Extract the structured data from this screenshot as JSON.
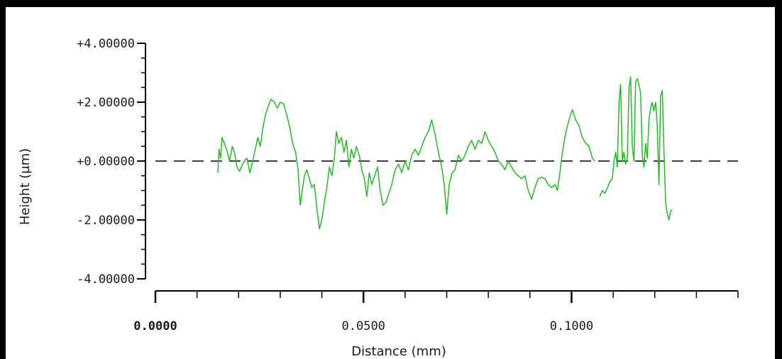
{
  "chart_data": {
    "type": "line",
    "title": "",
    "xlabel": "Distance (mm)",
    "ylabel": "Height (µm)",
    "xlim": [
      0.0,
      0.14
    ],
    "ylim": [
      -4.0,
      4.0
    ],
    "x_ticks": [
      "0.0000",
      "0.0500",
      "0.1000"
    ],
    "x_tick_values": [
      0.0,
      0.05,
      0.1
    ],
    "y_ticks": [
      "+4.00000",
      "+2.00000",
      "+0.00000",
      "-2.00000",
      "-4.00000"
    ],
    "y_tick_values": [
      4,
      2,
      0,
      -2,
      -4
    ],
    "reference_line": {
      "y": 0,
      "style": "dashed",
      "color": "#000000"
    },
    "grid": false,
    "series": [
      {
        "color": "#22bb22",
        "segments": [
          [
            [
              0.015,
              -0.4
            ],
            [
              0.0153,
              0.4
            ],
            [
              0.0157,
              0.1
            ],
            [
              0.016,
              0.8
            ],
            [
              0.0166,
              0.6
            ],
            [
              0.0172,
              0.35
            ],
            [
              0.0178,
              0.0
            ],
            [
              0.0185,
              0.5
            ],
            [
              0.019,
              0.3
            ],
            [
              0.0196,
              -0.2
            ],
            [
              0.0202,
              -0.35
            ],
            [
              0.0208,
              -0.15
            ],
            [
              0.0214,
              0.0
            ],
            [
              0.022,
              0.1
            ],
            [
              0.0227,
              -0.4
            ],
            [
              0.0234,
              0.0
            ],
            [
              0.024,
              0.4
            ],
            [
              0.0246,
              0.8
            ],
            [
              0.0252,
              0.5
            ],
            [
              0.0258,
              1.1
            ],
            [
              0.0265,
              1.6
            ],
            [
              0.0272,
              1.9
            ],
            [
              0.0278,
              2.1
            ],
            [
              0.0286,
              2.0
            ],
            [
              0.0293,
              1.8
            ],
            [
              0.03,
              2.0
            ],
            [
              0.0308,
              1.95
            ],
            [
              0.0315,
              1.6
            ],
            [
              0.0322,
              1.2
            ],
            [
              0.033,
              0.6
            ],
            [
              0.0337,
              0.3
            ],
            [
              0.0343,
              -0.3
            ],
            [
              0.0348,
              -1.5
            ],
            [
              0.0353,
              -1.0
            ],
            [
              0.0358,
              -0.5
            ],
            [
              0.0364,
              -0.3
            ],
            [
              0.037,
              -0.6
            ],
            [
              0.0376,
              -0.9
            ],
            [
              0.0382,
              -0.8
            ],
            [
              0.0388,
              -1.6
            ],
            [
              0.0394,
              -2.3
            ],
            [
              0.04,
              -2.0
            ],
            [
              0.0406,
              -1.4
            ],
            [
              0.0412,
              -0.9
            ],
            [
              0.0418,
              -0.2
            ],
            [
              0.0424,
              -0.5
            ],
            [
              0.043,
              0.1
            ],
            [
              0.0435,
              1.0
            ],
            [
              0.0441,
              0.6
            ],
            [
              0.0447,
              0.8
            ],
            [
              0.0453,
              0.3
            ],
            [
              0.0459,
              0.7
            ],
            [
              0.0465,
              -0.2
            ],
            [
              0.0471,
              0.4
            ],
            [
              0.0477,
              0.1
            ],
            [
              0.0483,
              0.5
            ],
            [
              0.049,
              0.2
            ],
            [
              0.0496,
              -0.3
            ],
            [
              0.0502,
              -0.6
            ],
            [
              0.0508,
              -1.2
            ],
            [
              0.0514,
              -0.4
            ],
            [
              0.052,
              -0.8
            ],
            [
              0.0527,
              -0.5
            ],
            [
              0.0534,
              -0.2
            ],
            [
              0.054,
              -1.0
            ],
            [
              0.0547,
              -1.5
            ],
            [
              0.0554,
              -1.4
            ],
            [
              0.0561,
              -1.1
            ],
            [
              0.0568,
              -0.8
            ],
            [
              0.0576,
              -0.3
            ],
            [
              0.0584,
              -0.1
            ],
            [
              0.0592,
              -0.4
            ],
            [
              0.06,
              0.0
            ],
            [
              0.0608,
              -0.3
            ],
            [
              0.0616,
              0.2
            ],
            [
              0.0624,
              0.4
            ],
            [
              0.0632,
              0.2
            ],
            [
              0.064,
              0.5
            ],
            [
              0.0648,
              0.8
            ],
            [
              0.0656,
              1.0
            ],
            [
              0.0664,
              1.4
            ],
            [
              0.0672,
              0.9
            ],
            [
              0.068,
              0.3
            ],
            [
              0.0688,
              -0.2
            ],
            [
              0.0694,
              -0.8
            ],
            [
              0.07,
              -1.8
            ],
            [
              0.0706,
              -0.8
            ],
            [
              0.0713,
              -0.4
            ],
            [
              0.072,
              -0.3
            ],
            [
              0.0728,
              0.2
            ],
            [
              0.0736,
              0.0
            ],
            [
              0.0744,
              0.2
            ],
            [
              0.0752,
              0.5
            ],
            [
              0.076,
              0.7
            ],
            [
              0.0768,
              0.4
            ],
            [
              0.0776,
              0.7
            ],
            [
              0.0784,
              0.6
            ],
            [
              0.0792,
              1.0
            ],
            [
              0.08,
              0.7
            ],
            [
              0.0808,
              0.5
            ],
            [
              0.0816,
              0.3
            ],
            [
              0.0824,
              0.0
            ],
            [
              0.0832,
              -0.1
            ],
            [
              0.084,
              -0.3
            ],
            [
              0.0848,
              0.0
            ],
            [
              0.0856,
              -0.2
            ],
            [
              0.0864,
              -0.4
            ],
            [
              0.0872,
              -0.5
            ],
            [
              0.088,
              -0.6
            ],
            [
              0.0888,
              -0.5
            ],
            [
              0.0896,
              -1.0
            ],
            [
              0.0904,
              -1.3
            ],
            [
              0.0912,
              -0.9
            ],
            [
              0.092,
              -0.6
            ],
            [
              0.0928,
              -0.55
            ],
            [
              0.0936,
              -0.6
            ],
            [
              0.0944,
              -0.8
            ],
            [
              0.0952,
              -0.9
            ],
            [
              0.096,
              -0.8
            ],
            [
              0.0966,
              -1.0
            ],
            [
              0.0972,
              -0.4
            ],
            [
              0.0978,
              0.3
            ],
            [
              0.0984,
              0.8
            ],
            [
              0.099,
              1.2
            ],
            [
              0.0996,
              1.5
            ],
            [
              0.1002,
              1.75
            ],
            [
              0.101,
              1.4
            ],
            [
              0.1018,
              1.2
            ],
            [
              0.1026,
              0.8
            ],
            [
              0.1034,
              0.6
            ],
            [
              0.1042,
              0.5
            ],
            [
              0.105,
              0.1
            ],
            [
              0.1056,
              0.0
            ]
          ],
          [
            [
              0.1068,
              -1.2
            ],
            [
              0.1074,
              -1.0
            ],
            [
              0.108,
              -1.1
            ],
            [
              0.1086,
              -0.9
            ],
            [
              0.1092,
              -0.7
            ],
            [
              0.1098,
              -0.6
            ],
            [
              0.1102,
              0.0
            ],
            [
              0.1106,
              0.3
            ],
            [
              0.111,
              -0.2
            ],
            [
              0.1114,
              2.0
            ],
            [
              0.1118,
              2.6
            ],
            [
              0.1122,
              0.0
            ],
            [
              0.1126,
              0.3
            ],
            [
              0.113,
              -0.1
            ],
            [
              0.1134,
              0.1
            ],
            [
              0.1138,
              2.5
            ],
            [
              0.1142,
              2.85
            ],
            [
              0.1146,
              0.5
            ],
            [
              0.115,
              0.0
            ],
            [
              0.1154,
              2.7
            ],
            [
              0.1158,
              2.8
            ],
            [
              0.1162,
              2.6
            ],
            [
              0.1166,
              2.3
            ],
            [
              0.117,
              0.2
            ],
            [
              0.1174,
              -0.2
            ],
            [
              0.1178,
              0.6
            ],
            [
              0.1182,
              0.1
            ],
            [
              0.1186,
              1.4
            ],
            [
              0.119,
              1.8
            ],
            [
              0.1194,
              2.0
            ],
            [
              0.1198,
              1.7
            ],
            [
              0.1202,
              2.0
            ],
            [
              0.1206,
              1.2
            ],
            [
              0.121,
              -0.8
            ],
            [
              0.1214,
              2.2
            ],
            [
              0.1218,
              2.4
            ],
            [
              0.1222,
              0.4
            ],
            [
              0.1226,
              -1.4
            ],
            [
              0.123,
              -1.8
            ],
            [
              0.1234,
              -2.0
            ],
            [
              0.1238,
              -1.7
            ],
            [
              0.1242,
              -1.65
            ]
          ]
        ]
      }
    ]
  }
}
